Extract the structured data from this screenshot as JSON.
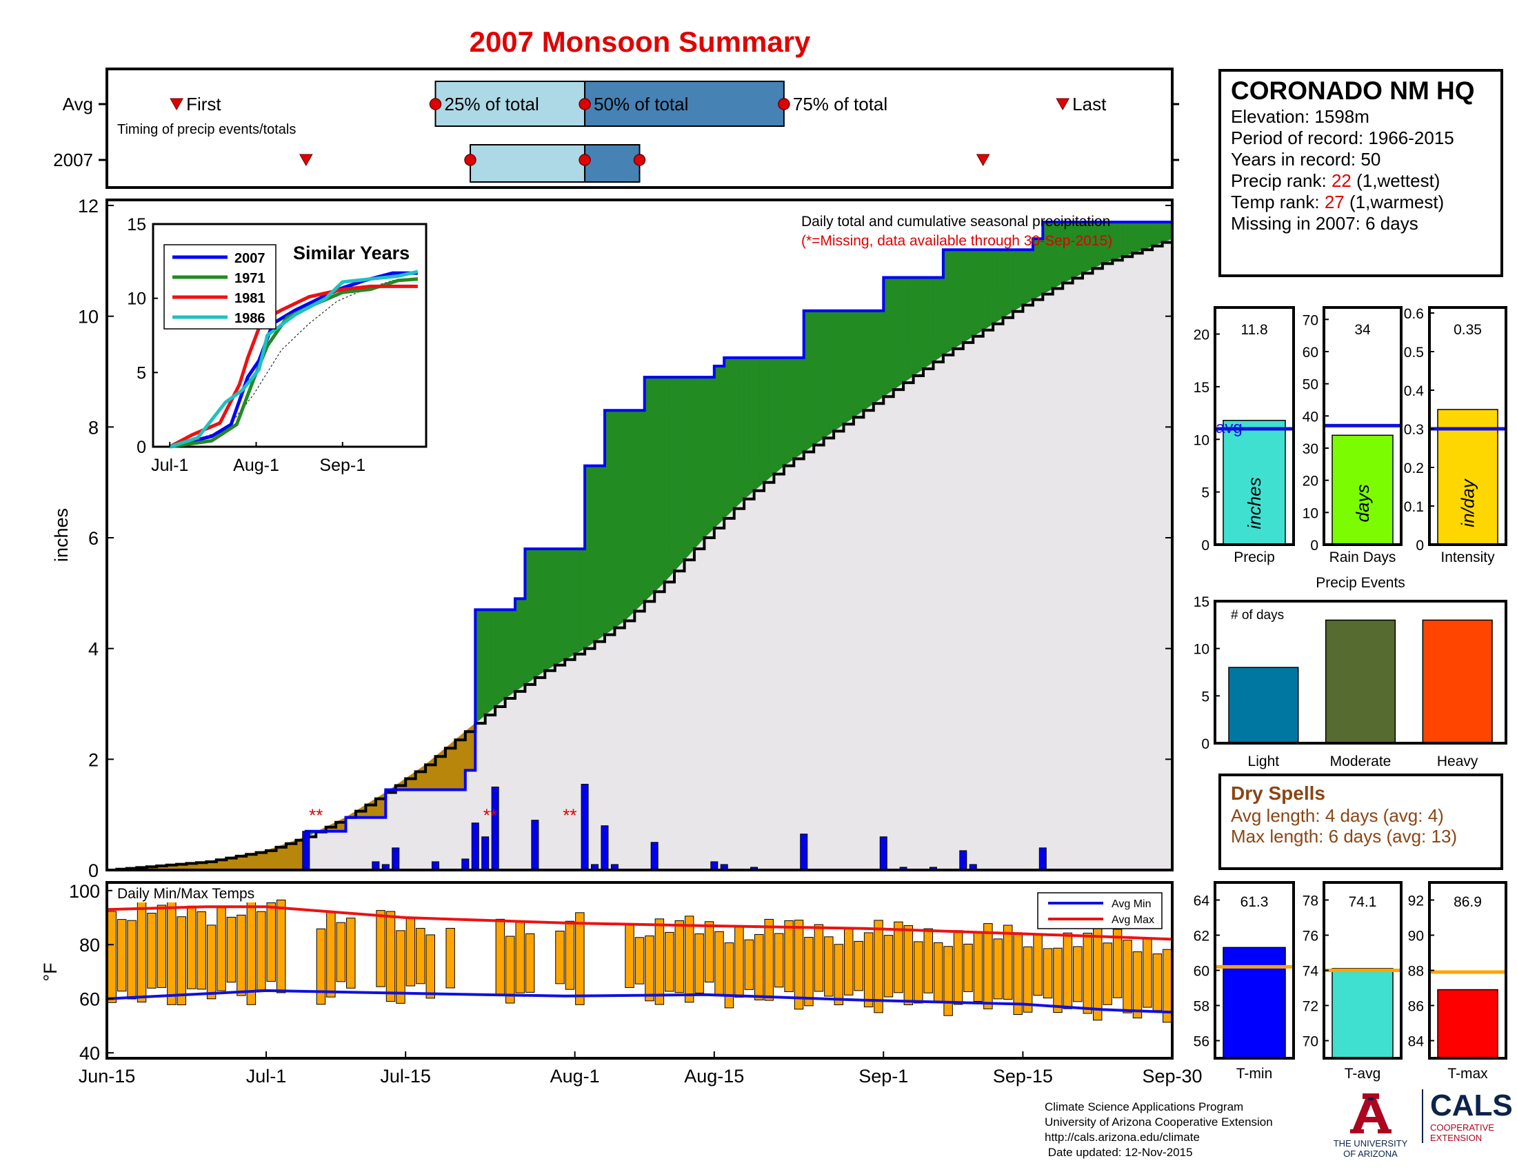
{
  "title": "2007 Monsoon Summary",
  "station": {
    "name": "CORONADO NM HQ",
    "elevation": "Elevation: 1598m",
    "period": "Period of record: 1966-2015",
    "years": "Years in record: 50",
    "precip_rank_label": "Precip rank: ",
    "precip_rank_value": "22",
    "precip_rank_note": " (1,wettest)",
    "temp_rank_label": "Temp rank: ",
    "temp_rank_value": "27",
    "temp_rank_note": " (1,warmest)",
    "missing": "Missing in 2007: 6 days"
  },
  "timing": {
    "row_labels": [
      "Avg",
      "2007"
    ],
    "first_label": "First",
    "pct25_label": "25% of total",
    "pct50_label": "50% of total",
    "pct75_label": "75% of total",
    "last_label": "Last",
    "caption": "Timing of precip events/totals",
    "avg": {
      "first": 7,
      "p25": 33,
      "p50": 48,
      "p75": 68,
      "last": 96
    },
    "y2007": {
      "first": 20,
      "p25": 36.5,
      "p50": 48,
      "p75": 53.5,
      "last": 88
    }
  },
  "main": {
    "ylabel": "inches",
    "legend_title": "Daily total and cumulative seasonal precipitation",
    "legend_note": "(*=Missing, data available through 30-Sep-2015)",
    "yticks": [
      "0",
      "2",
      "4",
      "6",
      "8",
      "10",
      "12"
    ],
    "xticks": [
      "Jun-15",
      "Jul-1",
      "Jul-15",
      "Aug-1",
      "Aug-15",
      "Sep-1",
      "Sep-15",
      "Sep-30"
    ],
    "missing_marker": "**"
  },
  "inset": {
    "title": "Similar Years",
    "legend": [
      "2007",
      "1971",
      "1981",
      "1986"
    ],
    "yticks": [
      "0",
      "5",
      "10",
      "15"
    ],
    "xticks": [
      "Jul-1",
      "Aug-1",
      "Sep-1"
    ]
  },
  "temps": {
    "title": "Daily Min/Max Temps",
    "ylabel": "°F",
    "yticks": [
      "40",
      "60",
      "80",
      "100"
    ],
    "legend_min": "Avg Min",
    "legend_max": "Avg Max"
  },
  "bars_precip": {
    "labels": [
      "Precip",
      "Rain Days",
      "Intensity"
    ],
    "values_text": [
      "11.8",
      "34",
      "0.35"
    ],
    "units": [
      "inches",
      "days",
      "in/day"
    ],
    "avg_label": "avg",
    "yticks": [
      [
        "0",
        "5",
        "10",
        "15",
        "20"
      ],
      [
        "0",
        "10",
        "20",
        "30",
        "40",
        "50",
        "60",
        "70"
      ],
      [
        "0",
        "0.1",
        "0.2",
        "0.3",
        "0.4",
        "0.5",
        "0.6"
      ]
    ]
  },
  "events": {
    "title": "Precip Events",
    "ylabel": "# of days",
    "categories": [
      "Light",
      "Moderate",
      "Heavy"
    ],
    "yticks": [
      "0",
      "5",
      "10",
      "15"
    ]
  },
  "dry": {
    "title": "Dry Spells",
    "avg": "Avg length: 4 days (avg: 4)",
    "max": "Max length: 6 days (avg: 13)"
  },
  "tbars": {
    "labels": [
      "T-min",
      "T-avg",
      "T-max"
    ],
    "values_text": [
      "61.3",
      "74.1",
      "86.9"
    ],
    "yticks": [
      [
        "56",
        "58",
        "60",
        "62",
        "64"
      ],
      [
        "70",
        "72",
        "74",
        "76",
        "78"
      ],
      [
        "84",
        "86",
        "88",
        "90",
        "92"
      ]
    ]
  },
  "footer": {
    "line1": "Climate Science Applications Program",
    "line2": "University of Arizona Cooperative Extension",
    "line3": "http://cals.arizona.edu/climate",
    "line4": " Date updated: 12-Nov-2015"
  },
  "logos": {
    "ua1": "THE UNIVERSITY",
    "ua2": "OF ARIZONA",
    "cals": "CALS",
    "cals1": "COOPERATIVE",
    "cals2": "EXTENSION"
  },
  "colors": {
    "obs_line": "#0000ff",
    "avg_line": "#000000",
    "above_fill": "#228B22",
    "below_fill": "#B8860B",
    "base_fill": "#E8E6E8",
    "temp_bar": "#FFA500",
    "avg_min": "#1010e0",
    "avg_max": "#ee1111",
    "precip_bar": "#40E0D0",
    "raindays_bar": "#7CFC00",
    "intensity_bar": "#FFD700",
    "light": "#0077A0",
    "moderate": "#556B2F",
    "heavy": "#FF4500",
    "tmin": "#0000ff",
    "tavg": "#40E0D0",
    "tmax": "#ff0000",
    "title_red": "#e00000"
  },
  "chart_data": [
    {
      "type": "area",
      "title": "Daily total and cumulative seasonal precipitation",
      "ylabel": "inches",
      "ylim": [
        0,
        12
      ],
      "x_range": [
        "Jun-15",
        "Sep-30"
      ],
      "series": [
        {
          "values": [
            [
              0,
              0
            ],
            [
              10,
              0.15
            ],
            [
              16,
              0.35
            ],
            [
              20,
              0.6
            ],
            [
              24,
              0.95
            ],
            [
              28,
              1.4
            ],
            [
              32,
              1.9
            ],
            [
              36,
              2.5
            ],
            [
              40,
              3.1
            ],
            [
              44,
              3.6
            ],
            [
              48,
              4.0
            ],
            [
              52,
              4.5
            ],
            [
              56,
              5.2
            ],
            [
              60,
              6.0
            ],
            [
              64,
              6.7
            ],
            [
              68,
              7.3
            ],
            [
              72,
              7.8
            ],
            [
              76,
              8.3
            ],
            [
              80,
              8.8
            ],
            [
              84,
              9.3
            ],
            [
              88,
              9.75
            ],
            [
              92,
              10.2
            ],
            [
              96,
              10.6
            ],
            [
              100,
              10.95
            ],
            [
              104,
              11.2
            ],
            [
              107,
              11.4
            ]
          ]
        },
        {
          "values": [
            [
              0,
              0
            ],
            [
              20,
              0
            ],
            [
              20,
              0.7
            ],
            [
              24,
              0.7
            ],
            [
              24,
              0.95
            ],
            [
              28,
              0.95
            ],
            [
              28,
              1.45
            ],
            [
              36,
              1.45
            ],
            [
              36,
              1.8
            ],
            [
              37,
              1.8
            ],
            [
              37,
              4.7
            ],
            [
              41,
              4.7
            ],
            [
              41,
              4.9
            ],
            [
              42,
              4.9
            ],
            [
              42,
              5.8
            ],
            [
              48,
              5.8
            ],
            [
              48,
              7.3
            ],
            [
              50,
              7.3
            ],
            [
              50,
              8.3
            ],
            [
              54,
              8.3
            ],
            [
              54,
              8.9
            ],
            [
              61,
              8.9
            ],
            [
              61,
              9.1
            ],
            [
              62,
              9.1
            ],
            [
              62,
              9.25
            ],
            [
              70,
              9.25
            ],
            [
              70,
              10.1
            ],
            [
              78,
              10.1
            ],
            [
              78,
              10.7
            ],
            [
              84,
              10.7
            ],
            [
              84,
              11.2
            ],
            [
              93,
              11.2
            ],
            [
              93,
              11.4
            ],
            [
              94,
              11.4
            ],
            [
              94,
              11.7
            ],
            [
              107,
              11.7
            ]
          ]
        }
      ],
      "daily_bars": [
        [
          20,
          0.7
        ],
        [
          27,
          0.15
        ],
        [
          28,
          0.1
        ],
        [
          29,
          0.4
        ],
        [
          33,
          0.15
        ],
        [
          36,
          0.2
        ],
        [
          37,
          0.85
        ],
        [
          38,
          0.6
        ],
        [
          39,
          1.5
        ],
        [
          43,
          0.9
        ],
        [
          48,
          1.55
        ],
        [
          49,
          0.1
        ],
        [
          50,
          0.8
        ],
        [
          51,
          0.1
        ],
        [
          55,
          0.5
        ],
        [
          61,
          0.15
        ],
        [
          62,
          0.1
        ],
        [
          65,
          0.05
        ],
        [
          70,
          0.65
        ],
        [
          78,
          0.6
        ],
        [
          80,
          0.05
        ],
        [
          83,
          0.05
        ],
        [
          86,
          0.35
        ],
        [
          87,
          0.1
        ],
        [
          94,
          0.4
        ]
      ]
    },
    {
      "type": "line",
      "title": "Similar Years",
      "ylim": [
        0,
        15
      ],
      "series": [
        {
          "name": "2007",
          "values": [
            [
              0,
              0
            ],
            [
              15,
              0.7
            ],
            [
              22,
              1.5
            ],
            [
              28,
              4.7
            ],
            [
              32,
              5.8
            ],
            [
              37,
              8.3
            ],
            [
              45,
              9.2
            ],
            [
              55,
              10.1
            ],
            [
              62,
              10.7
            ],
            [
              70,
              11.2
            ],
            [
              80,
              11.7
            ],
            [
              89,
              11.7
            ]
          ]
        },
        {
          "name": "1971",
          "values": [
            [
              0,
              0
            ],
            [
              15,
              0.4
            ],
            [
              24,
              1.5
            ],
            [
              30,
              4.5
            ],
            [
              35,
              6.8
            ],
            [
              42,
              8.7
            ],
            [
              52,
              9.6
            ],
            [
              62,
              10.4
            ],
            [
              72,
              10.6
            ],
            [
              82,
              11.2
            ],
            [
              89,
              11.3
            ]
          ]
        },
        {
          "name": "1981",
          "values": [
            [
              0,
              0
            ],
            [
              8,
              0.8
            ],
            [
              18,
              1.6
            ],
            [
              25,
              4.2
            ],
            [
              28,
              6.0
            ],
            [
              33,
              8.5
            ],
            [
              40,
              9.2
            ],
            [
              50,
              10.1
            ],
            [
              62,
              10.6
            ],
            [
              72,
              10.8
            ],
            [
              82,
              10.8
            ],
            [
              89,
              10.8
            ]
          ]
        },
        {
          "name": "1986",
          "values": [
            [
              0,
              0
            ],
            [
              10,
              0.6
            ],
            [
              20,
              3.0
            ],
            [
              26,
              3.8
            ],
            [
              32,
              5.2
            ],
            [
              35,
              7.5
            ],
            [
              45,
              8.9
            ],
            [
              56,
              10.0
            ],
            [
              62,
              11.1
            ],
            [
              72,
              11.3
            ],
            [
              82,
              11.5
            ],
            [
              89,
              11.8
            ]
          ]
        }
      ]
    },
    {
      "type": "bar",
      "title": "Daily Min/Max Temps",
      "ylabel": "°F",
      "ylim": [
        40,
        100
      ],
      "series": [
        {
          "name": "Avg Min",
          "values": [
            [
              0,
              60
            ],
            [
              16,
              63
            ],
            [
              30,
              62
            ],
            [
              46,
              61
            ],
            [
              60,
              61.5
            ],
            [
              76,
              59.5
            ],
            [
              92,
              58
            ],
            [
              100,
              56
            ],
            [
              107,
              55
            ]
          ]
        },
        {
          "name": "Avg Max",
          "values": [
            [
              0,
              93
            ],
            [
              10,
              94
            ],
            [
              16,
              94
            ],
            [
              30,
              90
            ],
            [
              46,
              88
            ],
            [
              60,
              87
            ],
            [
              76,
              86
            ],
            [
              92,
              84
            ],
            [
              100,
              83
            ],
            [
              107,
              82
            ]
          ]
        }
      ]
    },
    {
      "type": "bar",
      "categories": [
        "Precip",
        "Rain Days",
        "Intensity"
      ],
      "values": [
        11.8,
        34,
        0.35
      ],
      "avg": [
        11,
        37,
        0.3
      ],
      "ylim": [
        [
          0,
          22
        ],
        [
          0,
          72
        ],
        [
          0,
          0.6
        ]
      ]
    },
    {
      "type": "bar",
      "title": "Precip Events",
      "categories": [
        "Light",
        "Moderate",
        "Heavy"
      ],
      "values": [
        8,
        13,
        13
      ],
      "ylim": [
        0,
        15
      ]
    },
    {
      "type": "bar",
      "categories": [
        "T-min",
        "T-avg",
        "T-max"
      ],
      "values": [
        61.3,
        74.1,
        86.9
      ],
      "avg": [
        60.2,
        74.0,
        87.9
      ],
      "ylim": [
        [
          55,
          65
        ],
        [
          69,
          79
        ],
        [
          83,
          93
        ]
      ]
    }
  ]
}
